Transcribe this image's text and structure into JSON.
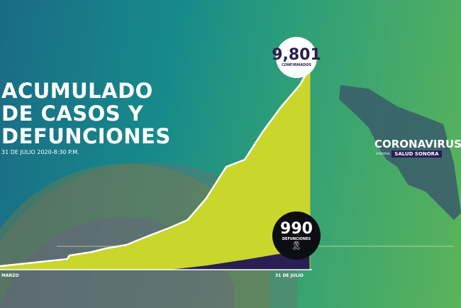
{
  "header": {
    "title_lines": [
      "ACUMULADO",
      "DE CASOS Y",
      "DEFUNCIONES"
    ],
    "subtitle": "31 DE JULIO 2020-8:30 P.M."
  },
  "brand": {
    "title": "CORONAVIRUS",
    "prefix": "informa",
    "badge": "SALUD SONORA"
  },
  "chart_data": {
    "type": "area",
    "title": "ACUMULADO DE CASOS Y DEFUNCIONES",
    "x_start_label": "MARZO",
    "x_end_label": "31 DE JULIO",
    "series": [
      {
        "name": "CONFIRMADOS",
        "color": "#c9d62c",
        "points": [
          [
            "2020-03-01",
            172
          ],
          [
            "2020-04-03",
            516
          ],
          [
            "2020-04-04",
            688
          ],
          [
            "2020-04-15",
            860
          ],
          [
            "2020-04-22",
            1032
          ],
          [
            "2020-05-02",
            1204
          ],
          [
            "2020-05-08",
            1445
          ],
          [
            "2020-05-15",
            1720
          ],
          [
            "2020-05-24",
            2063
          ],
          [
            "2020-06-01",
            2407
          ],
          [
            "2020-06-10",
            3439
          ],
          [
            "2020-06-20",
            4987
          ],
          [
            "2020-06-29",
            5331
          ],
          [
            "2020-07-08",
            6706
          ],
          [
            "2020-07-17",
            7910
          ],
          [
            "2020-07-26",
            8942
          ],
          [
            "2020-07-31",
            9801
          ]
        ]
      },
      {
        "name": "DEFUNCIONES",
        "color": "#2a1f55",
        "points": [
          [
            "2020-05-25",
            20
          ],
          [
            "2020-06-10",
            200
          ],
          [
            "2020-06-30",
            500
          ],
          [
            "2020-07-15",
            750
          ],
          [
            "2020-07-31",
            990
          ]
        ]
      }
    ],
    "final": {
      "cases": "9,801",
      "cases_label": "CONFIRMADOS",
      "deaths": "990",
      "deaths_label": "DEFUNCIONES"
    }
  },
  "colors": {
    "cases": "#c9d62c",
    "deaths": "#2a1f55",
    "map": "#3a5a6a"
  }
}
